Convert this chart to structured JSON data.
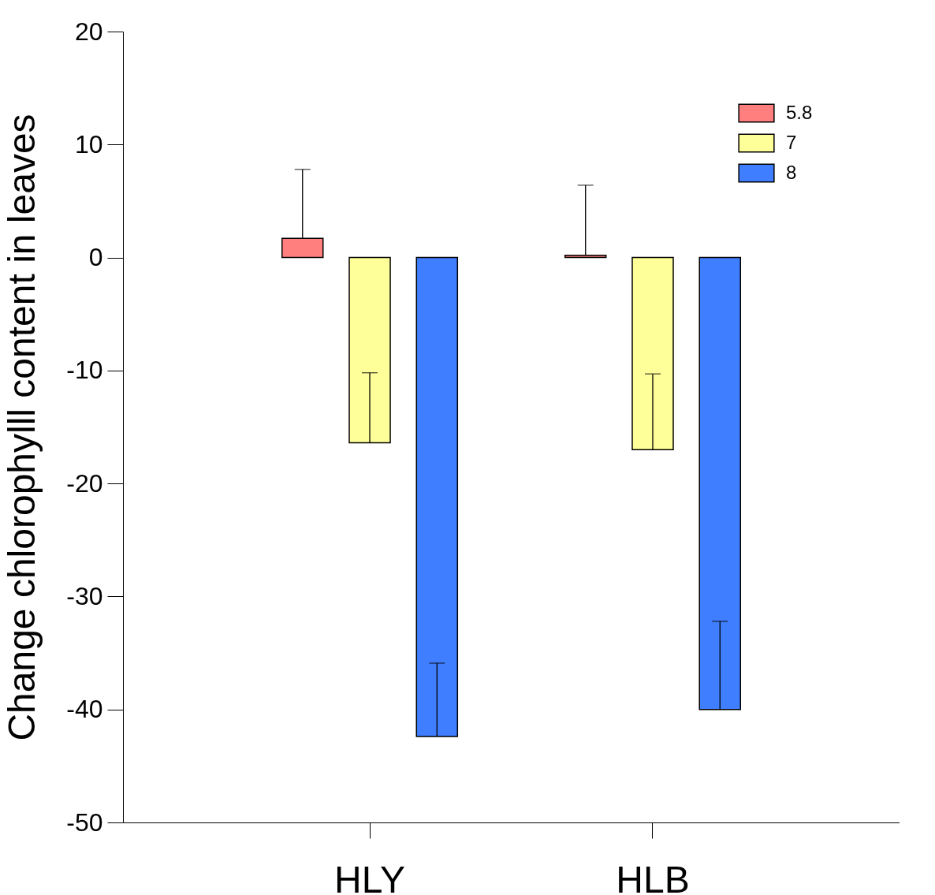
{
  "chart_data": {
    "type": "bar",
    "ylabel": "Change chlorophylll content in leaves",
    "categories": [
      "HLY",
      "HLB"
    ],
    "series": [
      {
        "name": "5.8",
        "color": "#ff7f7f",
        "values": [
          1.7,
          0.2
        ],
        "errors": [
          [
            1.7,
            7.8
          ],
          [
            0.2,
            6.4
          ]
        ]
      },
      {
        "name": "7",
        "color": "#ffff99",
        "values": [
          -16.4,
          -17.0
        ],
        "errors": [
          [
            -16.4,
            -10.2
          ],
          [
            -17.0,
            -10.3
          ]
        ]
      },
      {
        "name": "8",
        "color": "#3f7fff",
        "values": [
          -42.4,
          -40.0
        ],
        "errors": [
          [
            -42.4,
            -35.9
          ],
          [
            -40.0,
            -32.2
          ]
        ]
      }
    ],
    "ylim": [
      -50,
      20
    ],
    "yticks": [
      -50,
      -40,
      -30,
      -20,
      -10,
      0,
      10,
      20
    ],
    "grid": false,
    "legend": "top right"
  }
}
